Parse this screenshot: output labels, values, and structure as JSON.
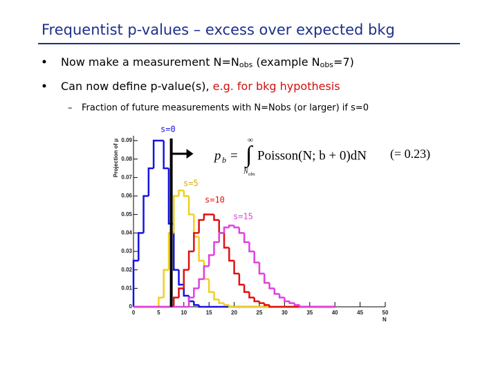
{
  "header": {
    "title": "Frequentist p-values – excess over expected bkg"
  },
  "bullets": [
    {
      "parts": [
        "Now make a measurement N=N",
        "obs",
        " (example N",
        "obs",
        "=7)"
      ]
    },
    {
      "parts": [
        "Can now define p-value(s), ",
        "e.g. for bkg hypothesis"
      ]
    }
  ],
  "subbullet": "Fraction of future measurements with N=Nobs (or larger) if s=0",
  "chart_data": {
    "type": "histogram",
    "xlabel": "N",
    "ylabel": "Projection of μ",
    "xlim": [
      0,
      50
    ],
    "ylim": [
      0,
      0.09
    ],
    "xticks": [
      0,
      5,
      10,
      15,
      20,
      25,
      30,
      35,
      40,
      45,
      50
    ],
    "yticks": [
      0,
      0.01,
      0.02,
      0.03,
      0.04,
      0.05,
      0.06,
      0.07,
      0.08,
      0.09
    ],
    "marker_x": 7.5,
    "bins": [
      0,
      1,
      2,
      3,
      4,
      5,
      6,
      7,
      8,
      9,
      10,
      11,
      12,
      13,
      14,
      15,
      16,
      17,
      18,
      19,
      20,
      21,
      22,
      23,
      24,
      25,
      26,
      27,
      28,
      29,
      30,
      31,
      32,
      33,
      34,
      35,
      36,
      37,
      38,
      39,
      40
    ],
    "series": [
      {
        "name": "s=0",
        "color": "#1414e0",
        "values": [
          0.025,
          0.04,
          0.06,
          0.075,
          0.09,
          0.09,
          0.075,
          0.045,
          0.02,
          0.012,
          0.006,
          0.003,
          0.001,
          0,
          0,
          0,
          0,
          0,
          0,
          0,
          0,
          0,
          0,
          0,
          0,
          0,
          0,
          0,
          0,
          0,
          0,
          0,
          0,
          0,
          0,
          0,
          0,
          0,
          0,
          0
        ]
      },
      {
        "name": "s=5",
        "color": "#f0d020",
        "values": [
          0,
          0,
          0,
          0,
          0,
          0.005,
          0.02,
          0.04,
          0.06,
          0.063,
          0.06,
          0.05,
          0.038,
          0.025,
          0.015,
          0.008,
          0.004,
          0.002,
          0.001,
          0,
          0,
          0,
          0,
          0,
          0,
          0,
          0,
          0,
          0,
          0,
          0,
          0,
          0,
          0,
          0,
          0,
          0,
          0,
          0,
          0
        ]
      },
      {
        "name": "s=10",
        "color": "#e01010",
        "values": [
          0,
          0,
          0,
          0,
          0,
          0,
          0,
          0,
          0.005,
          0.01,
          0.02,
          0.03,
          0.04,
          0.047,
          0.05,
          0.05,
          0.047,
          0.04,
          0.032,
          0.025,
          0.018,
          0.012,
          0.008,
          0.005,
          0.003,
          0.002,
          0.001,
          0,
          0,
          0,
          0,
          0,
          0,
          0,
          0,
          0,
          0,
          0,
          0,
          0
        ]
      },
      {
        "name": "s=15",
        "color": "#e040e0",
        "values": [
          0,
          0,
          0,
          0,
          0,
          0,
          0,
          0,
          0,
          0,
          0,
          0.005,
          0.01,
          0.015,
          0.022,
          0.028,
          0.035,
          0.04,
          0.043,
          0.044,
          0.043,
          0.04,
          0.035,
          0.03,
          0.024,
          0.018,
          0.013,
          0.01,
          0.007,
          0.005,
          0.003,
          0.002,
          0.001,
          0,
          0,
          0,
          0,
          0,
          0,
          0
        ]
      }
    ],
    "formula": {
      "parts": [
        "p",
        "b",
        "=",
        "∞",
        "N",
        "obs",
        "Poisson(N; b + 0)dN",
        "(= 0.23)"
      ]
    }
  }
}
